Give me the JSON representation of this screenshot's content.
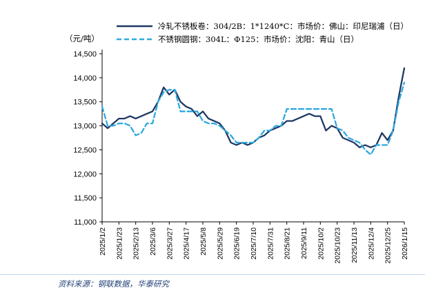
{
  "footer": {
    "source_text": "资料来源：钢联数据，华泰研究"
  },
  "chart_data": {
    "type": "line",
    "y_unit": "（元/吨）",
    "ylim": [
      11000,
      14500
    ],
    "y_ticks": [
      11000,
      11500,
      12000,
      12500,
      13000,
      13500,
      14000,
      14500
    ],
    "x_tick_labels": [
      "2025/1/2",
      "2025/1/23",
      "2025/2/13",
      "2025/3/6",
      "2025/3/27",
      "2025/4/17",
      "2025/5/8",
      "2025/5/29",
      "2025/6/19",
      "2025/7/10",
      "2025/7/31",
      "2025/8/21",
      "2025/9/11",
      "2025/10/2",
      "2025/10/23",
      "2025/11/13",
      "2025/12/4",
      "2025/12/25",
      "2026/1/15"
    ],
    "x_tick_every": 3,
    "grid": false,
    "legend_position": "top",
    "series": [
      {
        "name": "冷轧不锈板卷：304/2B：1*1240*C：市场价：佛山：印尼瑞浦（日）",
        "style": "solid",
        "color": "#1F3864",
        "values": [
          13050,
          12950,
          13050,
          13150,
          13150,
          13200,
          13150,
          13200,
          13250,
          13300,
          13500,
          13800,
          13650,
          13750,
          13500,
          13400,
          13350,
          13200,
          13300,
          13150,
          13100,
          13050,
          12900,
          12650,
          12600,
          12650,
          12600,
          12650,
          12750,
          12800,
          12900,
          12950,
          13000,
          13100,
          13100,
          13150,
          13200,
          13250,
          13200,
          13200,
          12900,
          13000,
          12950,
          12750,
          12700,
          12650,
          12550,
          12600,
          12550,
          12600,
          12850,
          12700,
          12900,
          13600,
          14200
        ]
      },
      {
        "name": "不锈钢圆钢：304L：Φ125：市场价：沈阳：青山（日）",
        "style": "dashed",
        "color": "#2EA9DF",
        "values": [
          13400,
          13000,
          13000,
          13050,
          13050,
          13000,
          12800,
          12850,
          13050,
          13050,
          13500,
          13700,
          13750,
          13750,
          13300,
          13300,
          13300,
          13300,
          13100,
          13050,
          13050,
          13000,
          12900,
          12800,
          12650,
          12650,
          12650,
          12650,
          12750,
          12900,
          12900,
          13000,
          13000,
          13350,
          13350,
          13350,
          13350,
          13350,
          13350,
          13350,
          13350,
          13350,
          12950,
          12900,
          12750,
          12700,
          12650,
          12500,
          12400,
          12600,
          12600,
          12600,
          12900,
          13500,
          13900
        ]
      }
    ]
  }
}
